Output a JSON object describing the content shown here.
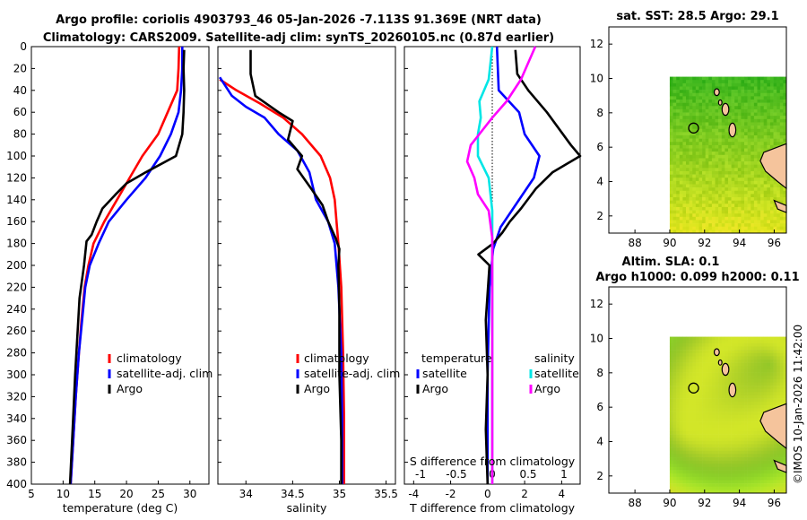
{
  "titles": {
    "line1": "Argo profile: coriolis 4903793_46 05-Jan-2026 -7.113S 91.369E (NRT data)",
    "line2": "Climatology: CARS2009. Satellite-adj clim: synTS_20260105.nc (0.87d earlier)"
  },
  "footer": "©IMOS 10-Jan-2026 11:42:00",
  "colors": {
    "climatology": "#ff0000",
    "satellite": "#0000ff",
    "argo": "#000000",
    "s_satellite": "#00e6e6",
    "s_argo": "#ff00ff",
    "land": "#f5c49c"
  },
  "chart_data": [
    {
      "type": "line",
      "id": "temperature",
      "xlabel": "temperature (deg C)",
      "ylabel": "",
      "xlim": [
        5,
        33
      ],
      "ylim": [
        400,
        0
      ],
      "xticks": [
        "5",
        "10",
        "15",
        "20",
        "25",
        "30"
      ],
      "yticks": [
        "0",
        "20",
        "40",
        "60",
        "80",
        "100",
        "120",
        "140",
        "160",
        "180",
        "200",
        "220",
        "240",
        "260",
        "280",
        "300",
        "320",
        "340",
        "360",
        "380",
        "400"
      ],
      "legend": [
        "climatology",
        "satellite-adj. clim",
        "Argo"
      ],
      "series": [
        {
          "name": "climatology",
          "color": "#ff0000",
          "points": [
            [
              28.3,
              0
            ],
            [
              28.2,
              20
            ],
            [
              28.0,
              40
            ],
            [
              26.5,
              60
            ],
            [
              25,
              80
            ],
            [
              22.5,
              100
            ],
            [
              20.5,
              120
            ],
            [
              18.5,
              140
            ],
            [
              16.5,
              160
            ],
            [
              14.8,
              180
            ],
            [
              14,
              200
            ],
            [
              13.4,
              220
            ],
            [
              12.9,
              250
            ],
            [
              12.5,
              280
            ],
            [
              12.0,
              320
            ],
            [
              11.6,
              360
            ],
            [
              11.2,
              400
            ]
          ]
        },
        {
          "name": "satellite-adj. clim",
          "color": "#0000ff",
          "points": [
            [
              28.8,
              0
            ],
            [
              28.8,
              20
            ],
            [
              28.6,
              40
            ],
            [
              28.2,
              60
            ],
            [
              27,
              80
            ],
            [
              25.3,
              100
            ],
            [
              23,
              120
            ],
            [
              20,
              140
            ],
            [
              17.2,
              160
            ],
            [
              15.6,
              180
            ],
            [
              14.2,
              200
            ],
            [
              13.5,
              220
            ],
            [
              13,
              250
            ],
            [
              12.5,
              280
            ],
            [
              12.0,
              320
            ],
            [
              11.6,
              360
            ],
            [
              11.2,
              400
            ]
          ]
        },
        {
          "name": "Argo",
          "color": "#000000",
          "points": [
            [
              29.1,
              3
            ],
            [
              29.0,
              20
            ],
            [
              29.1,
              40
            ],
            [
              29.0,
              60
            ],
            [
              28.8,
              80
            ],
            [
              27.8,
              100
            ],
            [
              23,
              115
            ],
            [
              20,
              125
            ],
            [
              18.3,
              135
            ],
            [
              16.2,
              148
            ],
            [
              15.3,
              160
            ],
            [
              14.5,
              172
            ],
            [
              13.7,
              178
            ],
            [
              13.3,
              200
            ],
            [
              12.6,
              230
            ],
            [
              12.3,
              260
            ],
            [
              11.9,
              300
            ],
            [
              11.5,
              350
            ],
            [
              11.1,
              400
            ]
          ]
        }
      ]
    },
    {
      "type": "line",
      "id": "salinity",
      "xlabel": "salinity",
      "xlim": [
        33.7,
        35.6
      ],
      "ylim": [
        400,
        0
      ],
      "xticks": [
        "34",
        "34.5",
        "35",
        "35.5"
      ],
      "legend": [
        "climatology",
        "satellite-adj. clim",
        "Argo"
      ],
      "series": [
        {
          "name": "climatology",
          "color": "#ff0000",
          "points": [
            [
              33.72,
              30
            ],
            [
              33.9,
              40
            ],
            [
              34.15,
              52
            ],
            [
              34.4,
              65
            ],
            [
              34.6,
              80
            ],
            [
              34.8,
              100
            ],
            [
              34.9,
              120
            ],
            [
              34.95,
              140
            ],
            [
              34.97,
              160
            ],
            [
              34.99,
              180
            ],
            [
              35.02,
              220
            ],
            [
              35.04,
              280
            ],
            [
              35.05,
              340
            ],
            [
              35.05,
              400
            ]
          ]
        },
        {
          "name": "satellite-adj. clim",
          "color": "#0000ff",
          "points": [
            [
              33.72,
              28
            ],
            [
              33.85,
              45
            ],
            [
              34.0,
              55
            ],
            [
              34.2,
              65
            ],
            [
              34.35,
              80
            ],
            [
              34.55,
              95
            ],
            [
              34.68,
              115
            ],
            [
              34.75,
              140
            ],
            [
              34.88,
              160
            ],
            [
              34.95,
              180
            ],
            [
              34.99,
              220
            ],
            [
              35.02,
              280
            ],
            [
              35.03,
              340
            ],
            [
              35.03,
              400
            ]
          ]
        },
        {
          "name": "Argo",
          "color": "#000000",
          "points": [
            [
              34.05,
              3
            ],
            [
              34.05,
              25
            ],
            [
              34.1,
              45
            ],
            [
              34.35,
              60
            ],
            [
              34.5,
              68
            ],
            [
              34.45,
              85
            ],
            [
              34.6,
              100
            ],
            [
              34.55,
              112
            ],
            [
              34.7,
              130
            ],
            [
              34.82,
              145
            ],
            [
              34.88,
              160
            ],
            [
              34.96,
              175
            ],
            [
              35.0,
              185
            ],
            [
              34.99,
              200
            ],
            [
              35.0,
              240
            ],
            [
              35.0,
              300
            ],
            [
              35.02,
              360
            ],
            [
              35.02,
              400
            ]
          ]
        }
      ]
    },
    {
      "type": "line",
      "id": "difference",
      "xlabel": "T difference from climatology",
      "top_axis_label": "S difference from climatology",
      "xlim": [
        -4.5,
        5
      ],
      "ylim": [
        400,
        0
      ],
      "xticks": [
        "-4",
        "-2",
        "0",
        "2",
        "4"
      ],
      "top_ticks": [
        "-1",
        "-0.5",
        "0",
        "0.5",
        "1"
      ],
      "legend_titles": [
        "temperature",
        "salinity"
      ],
      "legend": [
        "satellite",
        "Argo",
        "satellite",
        "Argo"
      ],
      "series": [
        {
          "name": "T satellite",
          "color": "#0000ff",
          "points": [
            [
              0.5,
              0
            ],
            [
              0.6,
              40
            ],
            [
              1.7,
              60
            ],
            [
              2.0,
              80
            ],
            [
              2.8,
              100
            ],
            [
              2.5,
              120
            ],
            [
              1.5,
              145
            ],
            [
              0.7,
              165
            ],
            [
              0.3,
              185
            ],
            [
              0.1,
              220
            ],
            [
              0,
              300
            ],
            [
              0,
              400
            ]
          ]
        },
        {
          "name": "T Argo",
          "color": "#000000",
          "points": [
            [
              1.5,
              3
            ],
            [
              1.6,
              25
            ],
            [
              2.2,
              40
            ],
            [
              3.2,
              60
            ],
            [
              4.5,
              90
            ],
            [
              5.0,
              100
            ],
            [
              3.5,
              115
            ],
            [
              2.6,
              130
            ],
            [
              1.8,
              148
            ],
            [
              1.2,
              160
            ],
            [
              0.8,
              170
            ],
            [
              0.3,
              180
            ],
            [
              -0.5,
              190
            ],
            [
              0.1,
              200
            ],
            [
              -0.1,
              250
            ],
            [
              0,
              300
            ],
            [
              -0.1,
              350
            ],
            [
              0,
              400
            ]
          ]
        },
        {
          "name": "S satellite",
          "color": "#00e6e6",
          "points": [
            [
              0,
              0
            ],
            [
              -0.05,
              30
            ],
            [
              -0.18,
              50
            ],
            [
              -0.16,
              65
            ],
            [
              -0.2,
              80
            ],
            [
              -0.2,
              100
            ],
            [
              -0.05,
              120
            ],
            [
              0,
              150
            ],
            [
              0,
              400
            ]
          ]
        },
        {
          "name": "S argo",
          "color": "#ff00ff",
          "points": [
            [
              0.6,
              0
            ],
            [
              0.4,
              30
            ],
            [
              0.2,
              50
            ],
            [
              0.0,
              65
            ],
            [
              -0.12,
              75
            ],
            [
              -0.3,
              90
            ],
            [
              -0.35,
              105
            ],
            [
              -0.25,
              120
            ],
            [
              -0.2,
              135
            ],
            [
              -0.05,
              150
            ],
            [
              0,
              175
            ],
            [
              0,
              400
            ]
          ]
        }
      ]
    },
    {
      "type": "heatmap",
      "id": "sst_map",
      "title": "sat. SST: 28.5 Argo: 29.1",
      "xlim": [
        86.5,
        96.7
      ],
      "ylim": [
        1,
        13
      ],
      "xticks": [
        "88",
        "90",
        "92",
        "94",
        "96"
      ],
      "yticks": [
        "2",
        "4",
        "6",
        "8",
        "10",
        "12"
      ]
    },
    {
      "type": "heatmap",
      "id": "sla_map",
      "title": "Altim. SLA: 0.1",
      "subtitle": "Argo h1000: 0.099 h2000: 0.11",
      "xlim": [
        86.5,
        96.7
      ],
      "ylim": [
        1,
        13
      ],
      "xticks": [
        "88",
        "90",
        "92",
        "94",
        "96"
      ],
      "yticks": [
        "2",
        "4",
        "6",
        "8",
        "10",
        "12"
      ]
    }
  ]
}
